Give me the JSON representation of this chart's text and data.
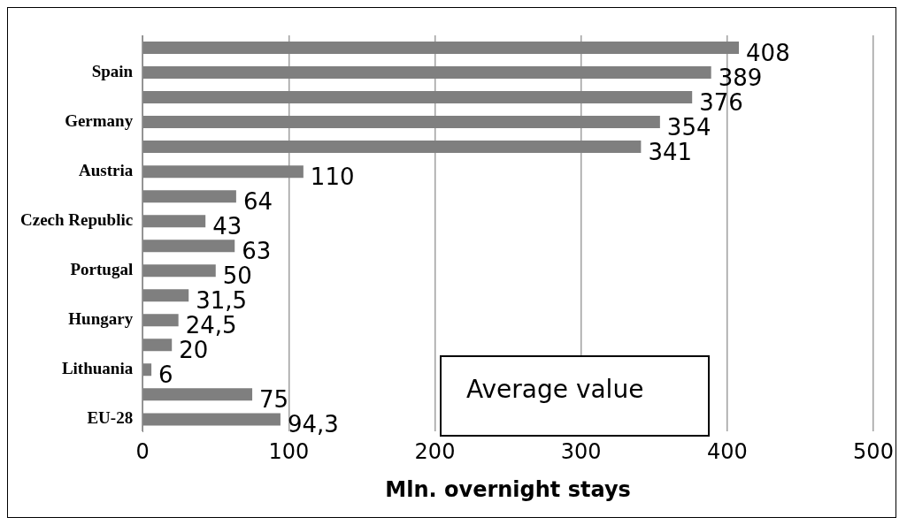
{
  "chart_data": {
    "type": "bar",
    "orientation": "horizontal",
    "xlabel": "Mln. overnight stays",
    "categories": [
      null,
      "Spain",
      null,
      "Germany",
      null,
      "Austria",
      null,
      "Czech Republic",
      null,
      "Portugal",
      null,
      "Hungary",
      null,
      "Lithuania",
      null,
      "EU-28"
    ],
    "values": [
      408,
      389,
      376,
      354,
      341,
      110,
      64,
      43,
      63,
      50,
      31.5,
      24.5,
      20,
      6,
      75,
      94.3
    ],
    "value_labels": [
      "408",
      "389",
      "376",
      "354",
      "341",
      "110",
      "64",
      "43",
      "63",
      "50",
      "31,5",
      "24,5",
      "20",
      "6",
      "75",
      "94,3"
    ],
    "color": "#7f7f7f",
    "xlim": [
      0,
      500
    ],
    "xticks": [
      0,
      100,
      200,
      300,
      400,
      500
    ],
    "grid": "x",
    "legend": false,
    "annotations": [
      "Average value"
    ]
  }
}
